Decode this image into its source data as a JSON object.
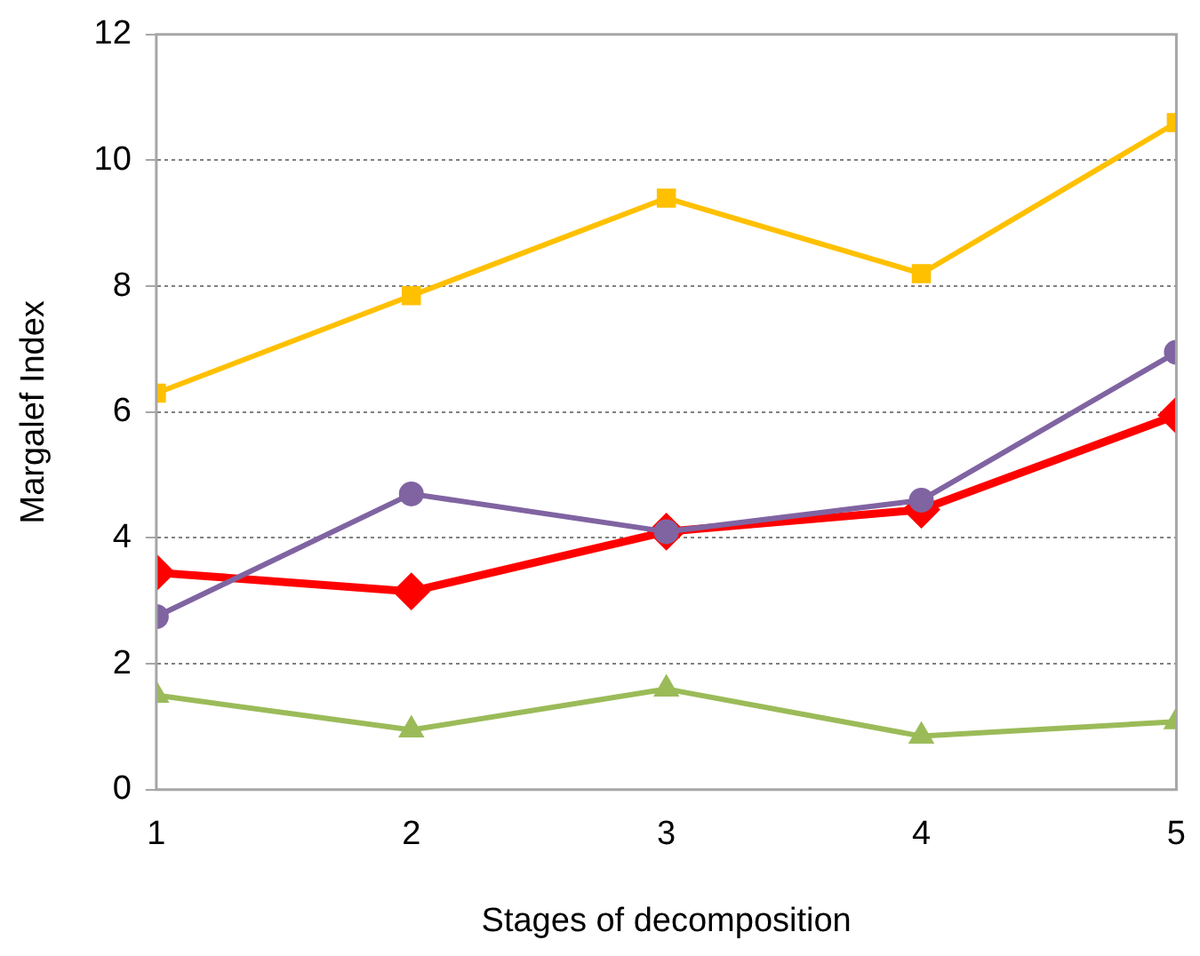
{
  "chart_data": {
    "type": "line",
    "xlabel": "Stages of decomposition",
    "ylabel": "Margalef Index",
    "x": [
      1,
      2,
      3,
      4,
      5
    ],
    "xlim": [
      1,
      5
    ],
    "xticks": [
      1,
      2,
      3,
      4,
      5
    ],
    "ylim": [
      0,
      12
    ],
    "yticks": [
      0,
      2,
      4,
      6,
      8,
      10,
      12
    ],
    "grid": "y",
    "legend": false,
    "line_style": "solid",
    "series": [
      {
        "color": "#ffc000",
        "marker": "square",
        "values": [
          6.3,
          7.85,
          9.4,
          8.2,
          10.6
        ]
      },
      {
        "color": "#8064a2",
        "marker": "circle",
        "values": [
          2.75,
          4.7,
          4.1,
          4.6,
          6.95
        ]
      },
      {
        "color": "#ff0000",
        "marker": "diamond",
        "values": [
          3.45,
          3.15,
          4.1,
          4.45,
          5.95
        ]
      },
      {
        "color": "#9bbb59",
        "marker": "triangle",
        "values": [
          1.5,
          0.95,
          1.6,
          0.85,
          1.08
        ]
      }
    ]
  }
}
